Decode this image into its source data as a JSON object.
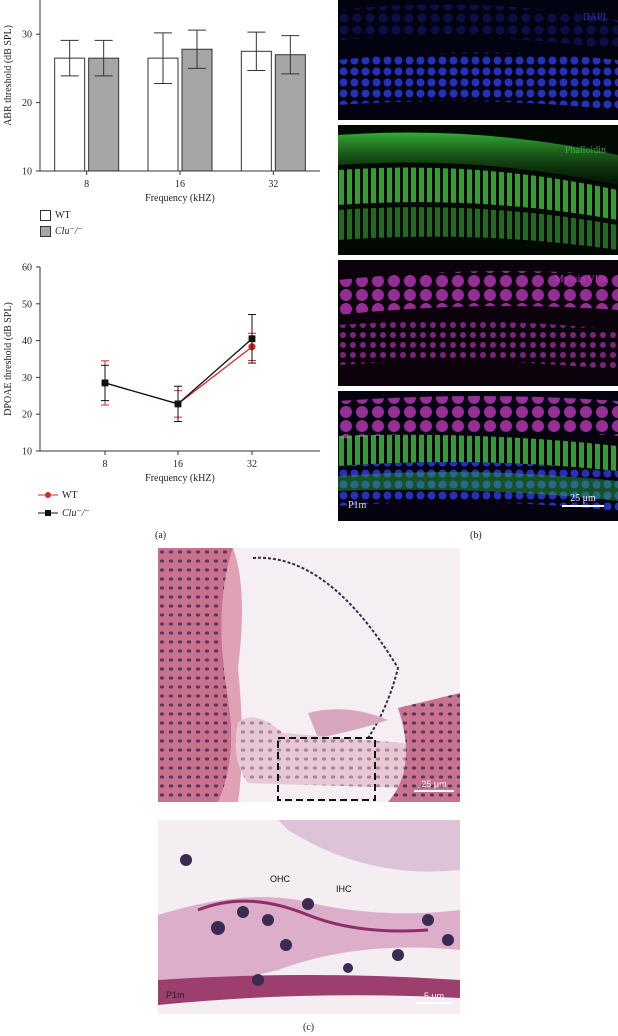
{
  "chart_data": [
    {
      "type": "bar",
      "ylabel": "ABR threshold (dB SPL)",
      "xlabel": "Frequency (kHZ)",
      "categories": [
        "8",
        "16",
        "32"
      ],
      "yticks": [
        "10",
        "20",
        "30"
      ],
      "ylim": [
        10,
        35
      ],
      "series": [
        {
          "name": "WT",
          "values": [
            26.5,
            26.5,
            27.5
          ],
          "err": [
            2.6,
            3.7,
            2.8
          ],
          "color": "#ffffff"
        },
        {
          "name": "Clu⁻/⁻",
          "values": [
            26.5,
            27.8,
            27.0
          ],
          "err": [
            2.6,
            2.8,
            2.8
          ],
          "color": "#a6a6a6"
        }
      ],
      "legend": [
        "WT",
        "Clu⁻/⁻"
      ],
      "legend_position": "bottom-left"
    },
    {
      "type": "line",
      "ylabel": "DPOAE threshold (dB SPL)",
      "xlabel": "Frequency (kHZ)",
      "categories": [
        "8",
        "16",
        "32"
      ],
      "yticks": [
        "10",
        "20",
        "30",
        "40",
        "50",
        "60"
      ],
      "ylim": [
        10,
        60
      ],
      "series": [
        {
          "name": "WT",
          "values": [
            28.5,
            22.8,
            38.3
          ],
          "err": [
            6.0,
            3.6,
            3.7
          ],
          "color": "#d42a2a",
          "marker": "circle"
        },
        {
          "name": "Clu⁻/⁻",
          "values": [
            28.5,
            22.8,
            40.5
          ],
          "err": [
            4.8,
            4.8,
            6.6
          ],
          "color": "#111111",
          "marker": "square"
        }
      ],
      "legend": [
        "WT",
        "Clu⁻/⁻"
      ],
      "legend_position": "bottom-left"
    }
  ],
  "panels": {
    "a": "(a)",
    "b": "(b)",
    "c": "(c)"
  },
  "microscopy_b": {
    "dapi": "DAPI",
    "phalloidin": "Phalloidin",
    "myosin": "Myosin VIIa",
    "age": "P1m",
    "scale": "25 μm",
    "colors": {
      "dapi": "#2030c0",
      "phalloidin": "#2ea82e",
      "myosin": "#b02fb0"
    }
  },
  "histology_c": {
    "scale_top": "25 μm",
    "ohc": "OHC",
    "ihc": "IHC",
    "age": "P1m",
    "scale_bottom": "5 μm"
  }
}
